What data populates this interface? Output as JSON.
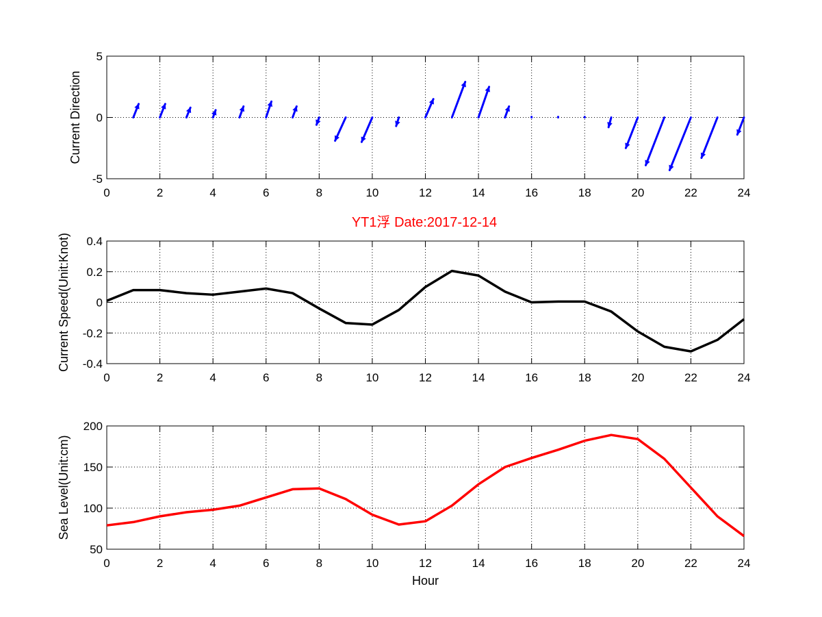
{
  "figure_title": "YT1浮   Date:2017-12-14",
  "colors": {
    "quiver": "#0000ff",
    "speed": "#000000",
    "sea_level": "#ff0000",
    "title": "#ff0000"
  },
  "chart_data": [
    {
      "type": "quiver",
      "ylabel": "Current Direction",
      "xlabel": "",
      "xlim": [
        0,
        24
      ],
      "ylim": [
        -5,
        5
      ],
      "xticks": [
        0,
        2,
        4,
        6,
        8,
        10,
        12,
        14,
        16,
        18,
        20,
        22,
        24
      ],
      "yticks": [
        -5,
        0,
        5
      ],
      "grid": true,
      "arrows": [
        {
          "x": 1,
          "u": 0.2,
          "v": 1.1
        },
        {
          "x": 2,
          "u": 0.2,
          "v": 1.1
        },
        {
          "x": 3,
          "u": 0.15,
          "v": 0.8
        },
        {
          "x": 4,
          "u": 0.1,
          "v": 0.6
        },
        {
          "x": 5,
          "u": 0.15,
          "v": 0.9
        },
        {
          "x": 6,
          "u": 0.2,
          "v": 1.3
        },
        {
          "x": 7,
          "u": 0.15,
          "v": 0.9
        },
        {
          "x": 8,
          "u": -0.1,
          "v": -0.6
        },
        {
          "x": 9,
          "u": -0.4,
          "v": -1.9
        },
        {
          "x": 10,
          "u": -0.4,
          "v": -2.0
        },
        {
          "x": 11,
          "u": -0.1,
          "v": -0.7
        },
        {
          "x": 12,
          "u": 0.3,
          "v": 1.5
        },
        {
          "x": 13,
          "u": 0.5,
          "v": 2.9
        },
        {
          "x": 14,
          "u": 0.4,
          "v": 2.5
        },
        {
          "x": 15,
          "u": 0.15,
          "v": 0.9
        },
        {
          "x": 16,
          "u": 0.0,
          "v": 0.05
        },
        {
          "x": 17,
          "u": 0.0,
          "v": 0.05
        },
        {
          "x": 18,
          "u": 0.0,
          "v": 0.05
        },
        {
          "x": 19,
          "u": -0.1,
          "v": -0.8
        },
        {
          "x": 20,
          "u": -0.45,
          "v": -2.5
        },
        {
          "x": 21,
          "u": -0.7,
          "v": -3.9
        },
        {
          "x": 22,
          "u": -0.8,
          "v": -4.3
        },
        {
          "x": 23,
          "u": -0.6,
          "v": -3.3
        },
        {
          "x": 24,
          "u": -0.25,
          "v": -1.4
        }
      ]
    },
    {
      "type": "line",
      "ylabel": "Current Speed(Unit:Knot)",
      "xlabel": "",
      "xlim": [
        0,
        24
      ],
      "ylim": [
        -0.4,
        0.4
      ],
      "xticks": [
        0,
        2,
        4,
        6,
        8,
        10,
        12,
        14,
        16,
        18,
        20,
        22,
        24
      ],
      "yticks": [
        -0.4,
        -0.2,
        0,
        0.2,
        0.4
      ],
      "grid": true,
      "x": [
        0,
        1,
        2,
        3,
        4,
        5,
        6,
        7,
        8,
        9,
        10,
        11,
        12,
        13,
        14,
        15,
        16,
        17,
        18,
        19,
        20,
        21,
        22,
        23,
        24
      ],
      "values": [
        0.01,
        0.08,
        0.08,
        0.06,
        0.05,
        0.07,
        0.09,
        0.06,
        -0.04,
        -0.135,
        -0.145,
        -0.05,
        0.1,
        0.205,
        0.175,
        0.07,
        0.0,
        0.005,
        0.005,
        -0.06,
        -0.19,
        -0.29,
        -0.32,
        -0.245,
        -0.11
      ]
    },
    {
      "type": "line",
      "ylabel": "Sea Level(Unit:cm)",
      "xlabel": "Hour",
      "xlim": [
        0,
        24
      ],
      "ylim": [
        50,
        200
      ],
      "xticks": [
        0,
        2,
        4,
        6,
        8,
        10,
        12,
        14,
        16,
        18,
        20,
        22,
        24
      ],
      "yticks": [
        50,
        100,
        150,
        200
      ],
      "grid": true,
      "x": [
        0,
        1,
        2,
        3,
        4,
        5,
        6,
        7,
        8,
        9,
        10,
        11,
        12,
        13,
        14,
        15,
        16,
        17,
        18,
        19,
        20,
        21,
        22,
        23,
        24
      ],
      "values": [
        79,
        83,
        90,
        95,
        98,
        103,
        113,
        123,
        124,
        111,
        92,
        80,
        84,
        103,
        129,
        150,
        161,
        171,
        182,
        189,
        184,
        160,
        125,
        90,
        66
      ]
    }
  ]
}
